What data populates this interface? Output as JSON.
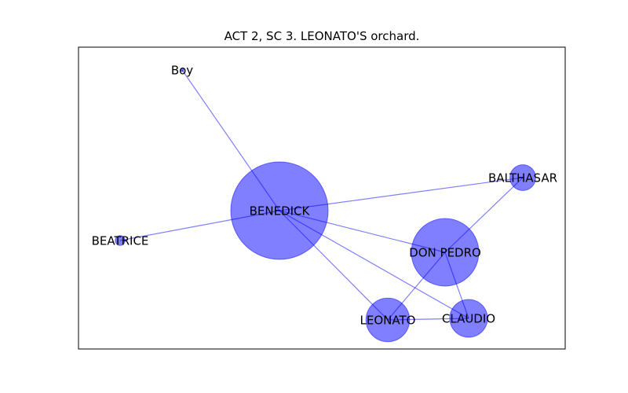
{
  "title": "ACT 2, SC 3. LEONATO'S orchard.",
  "colors": {
    "node_fill": "#0000ff",
    "node_fill_opacity": 0.5,
    "edge_stroke": "#0000ff",
    "edge_opacity": 0.5,
    "frame": "#000000"
  },
  "graph": {
    "nodes": [
      {
        "id": "boy",
        "label": "Boy",
        "weight": 0
      },
      {
        "id": "benedick",
        "label": "BENEDICK",
        "weight": 100
      },
      {
        "id": "beatrice",
        "label": "BEATRICE",
        "weight": 1
      },
      {
        "id": "balthasar",
        "label": "BALTHASAR",
        "weight": 7
      },
      {
        "id": "don_pedro",
        "label": "DON PEDRO",
        "weight": 48
      },
      {
        "id": "leonato",
        "label": "LEONATO",
        "weight": 20
      },
      {
        "id": "claudio",
        "label": "CLAUDIO",
        "weight": 15
      }
    ],
    "edges": [
      [
        "benedick",
        "boy"
      ],
      [
        "benedick",
        "beatrice"
      ],
      [
        "benedick",
        "balthasar"
      ],
      [
        "benedick",
        "don_pedro"
      ],
      [
        "benedick",
        "leonato"
      ],
      [
        "benedick",
        "claudio"
      ],
      [
        "don_pedro",
        "balthasar"
      ],
      [
        "don_pedro",
        "leonato"
      ],
      [
        "don_pedro",
        "claudio"
      ],
      [
        "leonato",
        "claudio"
      ]
    ]
  }
}
